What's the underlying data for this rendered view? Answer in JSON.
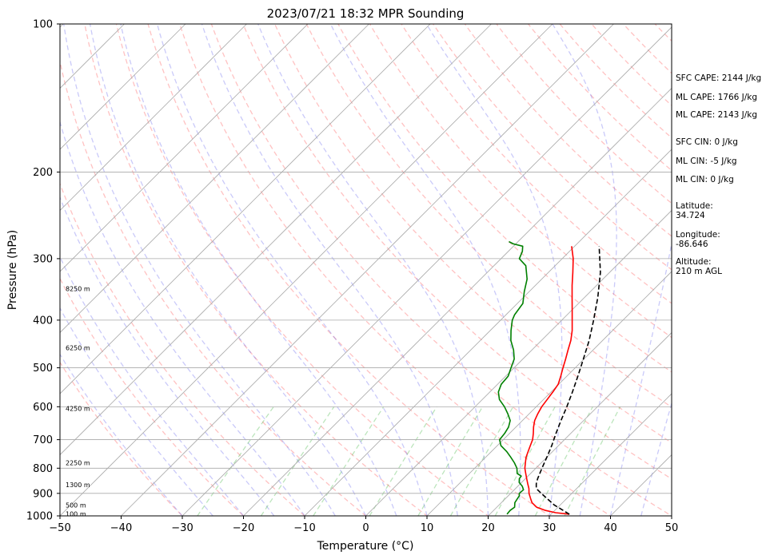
{
  "chart_data": {
    "type": "skew-t",
    "title": "2023/07/21 18:32 MPR Sounding",
    "xlabel": "Temperature (°C)",
    "ylabel": "Pressure (hPa)",
    "xlim": [
      -50,
      50
    ],
    "ylim": [
      1000,
      100
    ],
    "y_scale": "log",
    "grid": true,
    "x_ticks": [
      -50,
      -40,
      -30,
      -20,
      -10,
      0,
      10,
      20,
      30,
      40,
      50
    ],
    "y_ticks": [
      100,
      200,
      300,
      400,
      500,
      600,
      700,
      800,
      900,
      1000
    ],
    "height_labels": [
      {
        "pressure": 345,
        "text": "8250 m"
      },
      {
        "pressure": 455,
        "text": "6250 m"
      },
      {
        "pressure": 605,
        "text": "4250 m"
      },
      {
        "pressure": 780,
        "text": "2250 m"
      },
      {
        "pressure": 865,
        "text": "1300 m"
      },
      {
        "pressure": 950,
        "text": "500 m"
      },
      {
        "pressure": 990,
        "text": "100 m"
      }
    ],
    "series": [
      {
        "color": "#ff0000",
        "style": "solid",
        "points": [
          [
            992,
            33.0
          ],
          [
            985,
            30.5
          ],
          [
            975,
            28.5
          ],
          [
            960,
            26.5
          ],
          [
            940,
            25.0
          ],
          [
            920,
            24.0
          ],
          [
            900,
            23.0
          ],
          [
            880,
            22.2
          ],
          [
            860,
            21.2
          ],
          [
            840,
            20.2
          ],
          [
            820,
            19.2
          ],
          [
            800,
            18.2
          ],
          [
            780,
            17.4
          ],
          [
            760,
            16.6
          ],
          [
            740,
            16.0
          ],
          [
            720,
            15.4
          ],
          [
            700,
            14.8
          ],
          [
            680,
            13.9
          ],
          [
            660,
            12.9
          ],
          [
            640,
            12.0
          ],
          [
            620,
            11.4
          ],
          [
            600,
            10.9
          ],
          [
            580,
            10.6
          ],
          [
            560,
            10.3
          ],
          [
            540,
            9.9
          ],
          [
            520,
            9.0
          ],
          [
            500,
            8.0
          ],
          [
            480,
            7.0
          ],
          [
            460,
            5.9
          ],
          [
            440,
            4.8
          ],
          [
            420,
            3.4
          ],
          [
            400,
            1.7
          ],
          [
            380,
            -0.1
          ],
          [
            360,
            -2.0
          ],
          [
            340,
            -4.0
          ],
          [
            320,
            -6.0
          ],
          [
            300,
            -8.2
          ],
          [
            283,
            -10.5
          ]
        ]
      },
      {
        "color": "#008000",
        "style": "solid",
        "points": [
          [
            992,
            22.8
          ],
          [
            975,
            22.7
          ],
          [
            960,
            22.9
          ],
          [
            940,
            22.2
          ],
          [
            925,
            22.0
          ],
          [
            910,
            21.8
          ],
          [
            900,
            21.4
          ],
          [
            885,
            21.5
          ],
          [
            870,
            20.7
          ],
          [
            855,
            19.6
          ],
          [
            840,
            19.0
          ],
          [
            830,
            18.9
          ],
          [
            820,
            17.8
          ],
          [
            800,
            16.9
          ],
          [
            780,
            15.6
          ],
          [
            760,
            14.1
          ],
          [
            740,
            12.5
          ],
          [
            720,
            10.6
          ],
          [
            700,
            9.4
          ],
          [
            680,
            9.2
          ],
          [
            660,
            8.8
          ],
          [
            640,
            8.0
          ],
          [
            620,
            6.5
          ],
          [
            600,
            4.8
          ],
          [
            580,
            2.8
          ],
          [
            560,
            1.4
          ],
          [
            540,
            0.6
          ],
          [
            520,
            0.4
          ],
          [
            500,
            -0.5
          ],
          [
            480,
            -1.4
          ],
          [
            460,
            -3.0
          ],
          [
            440,
            -5.0
          ],
          [
            420,
            -6.6
          ],
          [
            400,
            -8.1
          ],
          [
            390,
            -8.6
          ],
          [
            370,
            -9.1
          ],
          [
            350,
            -10.8
          ],
          [
            330,
            -12.4
          ],
          [
            310,
            -14.8
          ],
          [
            300,
            -17.0
          ],
          [
            290,
            -17.7
          ],
          [
            283,
            -18.5
          ],
          [
            280,
            -20.4
          ],
          [
            277,
            -21.5
          ]
        ]
      },
      {
        "color": "#000000",
        "style": "dashed",
        "points": [
          [
            992,
            33.0
          ],
          [
            950,
            29.0
          ],
          [
            900,
            25.0
          ],
          [
            880,
            23.4
          ],
          [
            860,
            22.6
          ],
          [
            840,
            22.0
          ],
          [
            800,
            21.0
          ],
          [
            760,
            20.0
          ],
          [
            720,
            18.9
          ],
          [
            680,
            17.6
          ],
          [
            640,
            16.3
          ],
          [
            600,
            15.0
          ],
          [
            560,
            13.5
          ],
          [
            520,
            11.8
          ],
          [
            480,
            9.9
          ],
          [
            440,
            7.8
          ],
          [
            400,
            5.2
          ],
          [
            360,
            2.2
          ],
          [
            320,
            -1.5
          ],
          [
            283,
            -6.0
          ]
        ]
      }
    ],
    "annotations": {
      "sfc_cape": "SFC CAPE: 2144 J/kg",
      "ml_cape_1": "ML CAPE: 1766 J/kg",
      "ml_cape_2": "ML CAPE: 2143 J/kg",
      "sfc_cin": "SFC CIN: 0 J/kg",
      "ml_cin_1": "ML CIN: -5 J/kg",
      "ml_cin_2": "ML CIN: 0 J/kg",
      "latitude": "Latitude:\n34.724",
      "longitude": "Longitude:\n-86.646",
      "altitude": "Altitude:\n210 m AGL"
    }
  }
}
